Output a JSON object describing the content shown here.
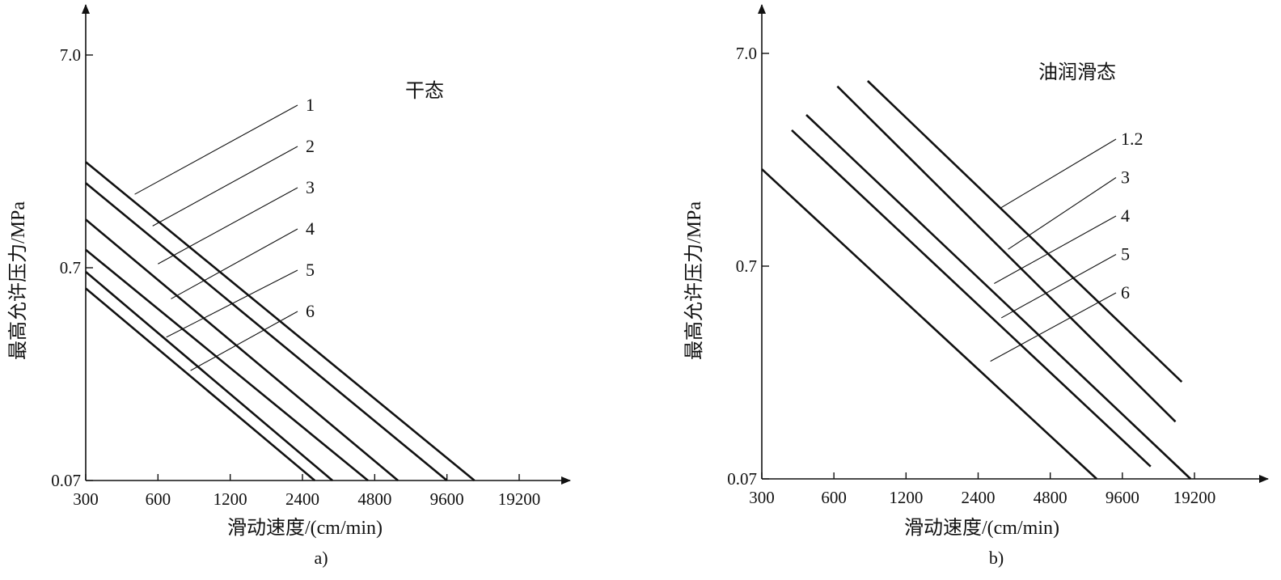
{
  "chart_data": [
    {
      "panel": "a)",
      "type": "line",
      "condition_label": "干态",
      "xlabel": "滑动速度/(cm/min)",
      "ylabel": "最高允许压力/MPa",
      "x_scale": "log",
      "y_scale": "log",
      "x_ticks": [
        300,
        600,
        1200,
        2400,
        4800,
        9600,
        19200
      ],
      "x_tick_labels": [
        "300",
        "600",
        "1200",
        "2400",
        "4800",
        "9600",
        "19200"
      ],
      "y_ticks": [
        0.07,
        0.7,
        7.0
      ],
      "y_tick_labels": [
        "0.07",
        "0.7",
        "7.0"
      ],
      "xlim": [
        300,
        19200
      ],
      "ylim": [
        0.07,
        7.0
      ],
      "series": [
        {
          "name": "1",
          "x": [
            300,
            12500
          ],
          "y": [
            2.2,
            0.07
          ]
        },
        {
          "name": "2",
          "x": [
            300,
            9600
          ],
          "y": [
            1.75,
            0.07
          ]
        },
        {
          "name": "3",
          "x": [
            300,
            6000
          ],
          "y": [
            1.18,
            0.07
          ]
        },
        {
          "name": "4",
          "x": [
            300,
            4500
          ],
          "y": [
            0.85,
            0.07
          ]
        },
        {
          "name": "5",
          "x": [
            300,
            3200
          ],
          "y": [
            0.67,
            0.07
          ]
        },
        {
          "name": "6",
          "x": [
            300,
            2700
          ],
          "y": [
            0.56,
            0.07
          ]
        }
      ],
      "callouts": [
        {
          "text": "1",
          "x": 480,
          "y": 1.55
        },
        {
          "text": "2",
          "x": 570,
          "y": 1.1
        },
        {
          "text": "3",
          "x": 600,
          "y": 0.73
        },
        {
          "text": "4",
          "x": 680,
          "y": 0.5
        },
        {
          "text": "5",
          "x": 650,
          "y": 0.33
        },
        {
          "text": "6",
          "x": 820,
          "y": 0.23
        }
      ]
    },
    {
      "panel": "b)",
      "type": "line",
      "condition_label": "油润滑态",
      "xlabel": "滑动速度/(cm/min)",
      "ylabel": "最高允许压力/MPa",
      "x_scale": "log",
      "y_scale": "log",
      "x_ticks": [
        300,
        600,
        1200,
        2400,
        4800,
        9600,
        19200
      ],
      "x_tick_labels": [
        "300",
        "600",
        "1200",
        "2400",
        "4800",
        "9600",
        "19200"
      ],
      "y_ticks": [
        0.07,
        0.7,
        7.0
      ],
      "y_tick_labels": [
        "0.07",
        "0.7",
        "7.0"
      ],
      "xlim": [
        300,
        19200
      ],
      "ylim": [
        0.07,
        7.0
      ],
      "series": [
        {
          "name": "1.2",
          "x": [
            830,
            17000
          ],
          "y": [
            5.2,
            0.2
          ]
        },
        {
          "name": "3",
          "x": [
            620,
            16000
          ],
          "y": [
            4.9,
            0.13
          ]
        },
        {
          "name": "4",
          "x": [
            460,
            18500
          ],
          "y": [
            3.6,
            0.07
          ]
        },
        {
          "name": "5",
          "x": [
            400,
            12600
          ],
          "y": [
            3.05,
            0.08
          ]
        },
        {
          "name": "6",
          "x": [
            300,
            7500
          ],
          "y": [
            2.0,
            0.07
          ]
        }
      ],
      "callouts": [
        {
          "text": "1.2",
          "x": 3000,
          "y": 1.32
        },
        {
          "text": "3",
          "x": 3200,
          "y": 0.84
        },
        {
          "text": "4",
          "x": 2800,
          "y": 0.58
        },
        {
          "text": "5",
          "x": 3000,
          "y": 0.4
        },
        {
          "text": "6",
          "x": 2700,
          "y": 0.25
        }
      ]
    }
  ]
}
